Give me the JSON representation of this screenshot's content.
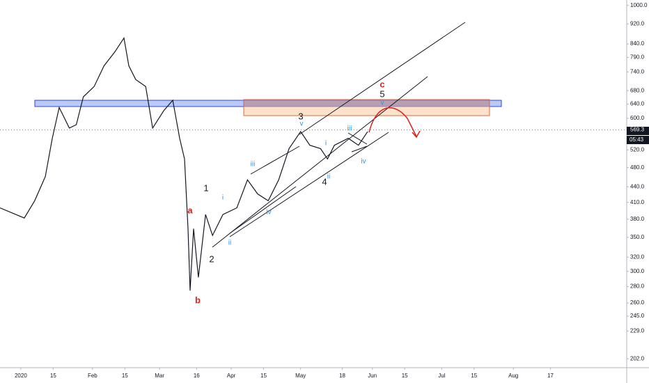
{
  "chart_data": {
    "type": "line",
    "log_y": true,
    "color": "#131722",
    "x": [
      -9,
      1.5,
      6,
      10.6,
      13.6,
      16.6,
      21,
      24,
      27,
      31.7,
      36,
      40.7,
      44.6,
      46.7,
      49.7,
      54,
      57,
      61.8,
      65.7,
      68.7,
      70.8,
      72.3,
      73.2,
      74.7,
      76.8,
      79.9,
      82.9,
      87.4,
      93.4,
      98,
      102.4,
      107,
      111.5,
      116,
      121,
      125,
      129.6,
      132.6,
      135.6,
      141.6,
      146,
      150
    ],
    "values": [
      400,
      382,
      413,
      461,
      548,
      630,
      574,
      583,
      661,
      693,
      761,
      811,
      863,
      761,
      715,
      693,
      574,
      621,
      651,
      548,
      499,
      364,
      275,
      364,
      292,
      388,
      353,
      388,
      400,
      454,
      426,
      413,
      454,
      523,
      565,
      531,
      523,
      499,
      531,
      548,
      531,
      565
    ],
    "xlim": [
      -9,
      262
    ],
    "xticks": [
      {
        "value": 0,
        "label": "2020"
      },
      {
        "value": 14,
        "label": "15"
      },
      {
        "value": 31,
        "label": "Feb"
      },
      {
        "value": 45,
        "label": "15"
      },
      {
        "value": 60,
        "label": "Mar"
      },
      {
        "value": 76,
        "label": "16"
      },
      {
        "value": 91,
        "label": "Apr"
      },
      {
        "value": 105,
        "label": "15"
      },
      {
        "value": 121,
        "label": "May"
      },
      {
        "value": 139,
        "label": "18"
      },
      {
        "value": 152,
        "label": "Jun"
      },
      {
        "value": 166,
        "label": "15"
      },
      {
        "value": 182,
        "label": "Jul"
      },
      {
        "value": 196,
        "label": "15"
      },
      {
        "value": 213,
        "label": "Aug"
      },
      {
        "value": 229,
        "label": "17"
      }
    ],
    "ylim": [
      194,
      1025
    ],
    "yticks": [
      {
        "value": 1000,
        "label": "1000.0"
      },
      {
        "value": 920,
        "label": "920.0"
      },
      {
        "value": 840,
        "label": "840.0"
      },
      {
        "value": 790,
        "label": "790.0"
      },
      {
        "value": 740,
        "label": "740.0"
      },
      {
        "value": 680,
        "label": "680.0"
      },
      {
        "value": 640,
        "label": "640.0"
      },
      {
        "value": 600,
        "label": "600.0"
      },
      {
        "value": 520,
        "label": "520.0"
      },
      {
        "value": 480,
        "label": "480.0"
      },
      {
        "value": 440,
        "label": "440.0"
      },
      {
        "value": 410,
        "label": "410.0"
      },
      {
        "value": 380,
        "label": "380.0"
      },
      {
        "value": 350,
        "label": "350.0"
      },
      {
        "value": 320,
        "label": "320.0"
      },
      {
        "value": 300,
        "label": "300.0"
      },
      {
        "value": 280,
        "label": "280.0"
      },
      {
        "value": 260,
        "label": "260.0"
      },
      {
        "value": 245,
        "label": "245.0"
      },
      {
        "value": 229,
        "label": "229.0"
      },
      {
        "value": 202,
        "label": "202.0"
      }
    ],
    "last_price": 569.3,
    "countdown": "05:43",
    "annotations": [
      "a",
      "b",
      "c",
      "1",
      "2",
      "3",
      "4",
      "5",
      "i",
      "ii",
      "iii",
      "iv",
      "v",
      "i",
      "ii",
      "iii",
      "iv",
      "v"
    ]
  }
}
